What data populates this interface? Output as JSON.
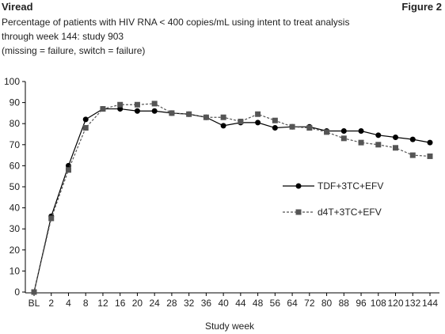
{
  "header": {
    "brand": "Viread",
    "figure": "Figure 2"
  },
  "chart_data": {
    "type": "line",
    "subtitle": [
      "Percentage of patients with HIV RNA < 400 copies/mL using intent to treat analysis",
      "through week 144: study 903",
      "(missing = failure, switch = failure)"
    ],
    "x_label": "Study week",
    "categories": [
      "BL",
      "2",
      "4",
      "8",
      "12",
      "16",
      "20",
      "24",
      "28",
      "32",
      "36",
      "40",
      "44",
      "48",
      "56",
      "64",
      "72",
      "80",
      "88",
      "96",
      "108",
      "120",
      "132",
      "144"
    ],
    "series": [
      {
        "name": "TDF+3TC+EFV",
        "color": "#000000",
        "marker": "circle",
        "dashed": false,
        "values": [
          0,
          36,
          60,
          82,
          87,
          87,
          86,
          86,
          85,
          84.5,
          83,
          79,
          80.5,
          80.5,
          78,
          78.5,
          78.5,
          76.5,
          76.5,
          76.5,
          74.5,
          73.5,
          72.5,
          71
        ]
      },
      {
        "name": "d4T+3TC+EFV",
        "color": "#555555",
        "marker": "square",
        "dashed": true,
        "values": [
          0,
          35,
          58,
          78,
          87,
          89,
          89,
          89.5,
          85,
          84.5,
          83,
          83,
          81,
          84.5,
          81.5,
          78.5,
          78,
          76,
          73,
          71,
          70,
          68.5,
          65,
          64.5
        ]
      }
    ],
    "ylim": [
      0,
      100
    ],
    "yticks": [
      0,
      10,
      20,
      30,
      40,
      50,
      60,
      70,
      80,
      90,
      100
    ],
    "grid": false,
    "legend": "right"
  }
}
